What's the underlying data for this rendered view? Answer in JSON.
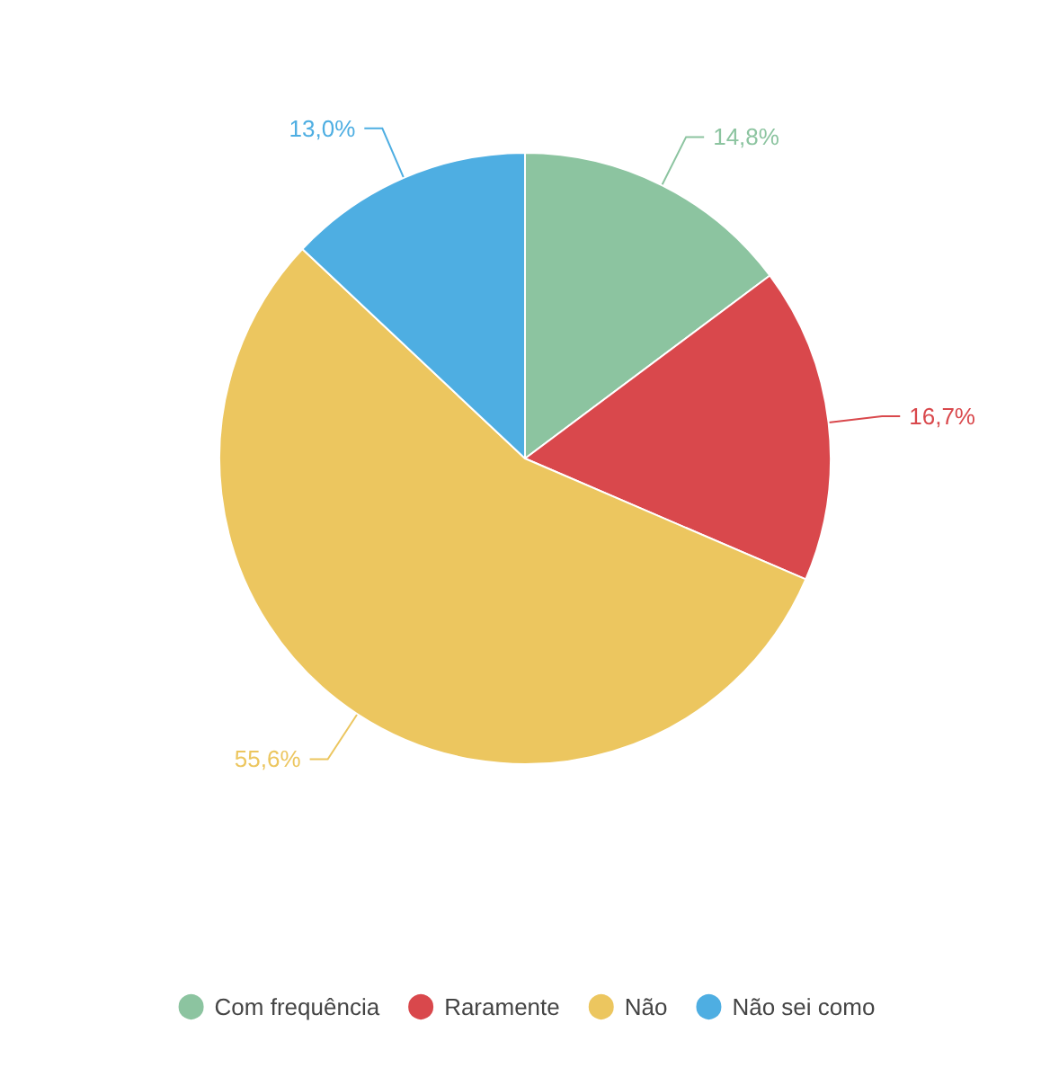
{
  "chart_data": {
    "type": "pie",
    "categories": [
      "Com frequência",
      "Raramente",
      "Não",
      "Não sei como"
    ],
    "values": [
      14.8,
      16.7,
      55.6,
      13.0
    ],
    "value_labels": [
      "14,8%",
      "16,7%",
      "55,6%",
      "13,0%"
    ],
    "colors": [
      "#8cc4a0",
      "#d9484c",
      "#ecc65f",
      "#4eaee2"
    ],
    "legend": "bottom"
  }
}
